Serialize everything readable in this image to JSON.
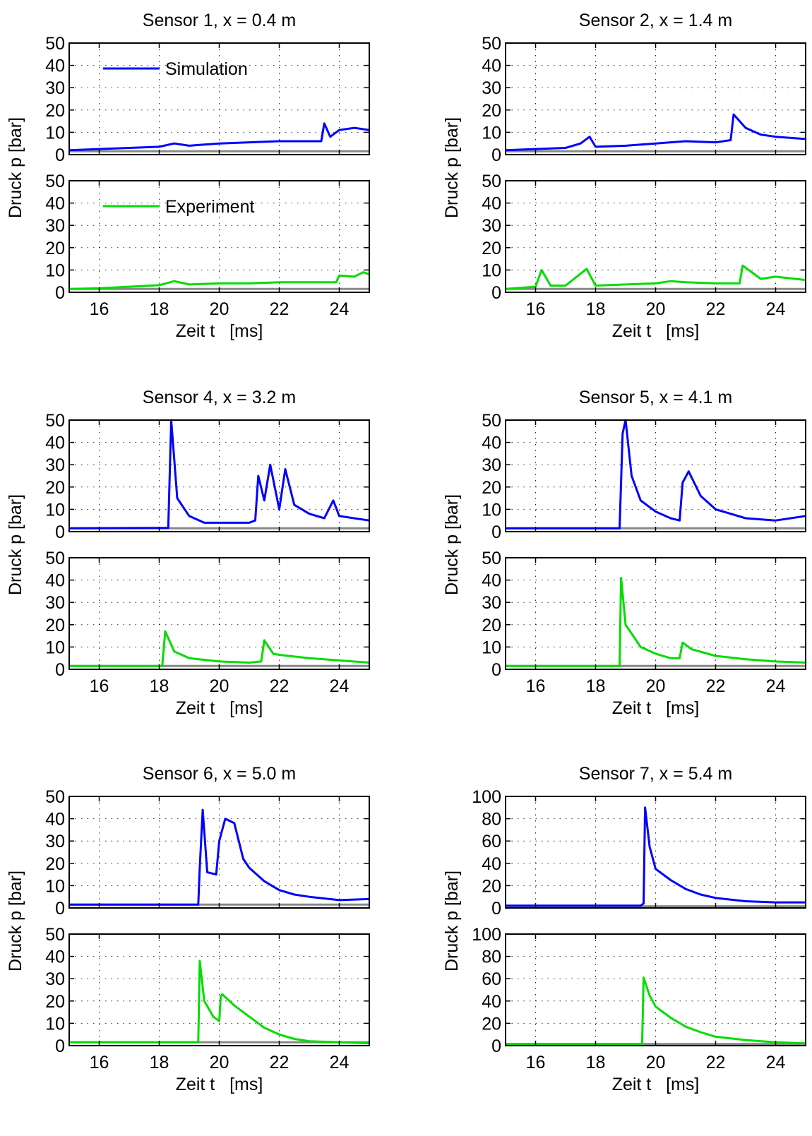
{
  "colors": {
    "simulation": "#0000ff",
    "experiment": "#00dd00",
    "baseline": "#888888"
  },
  "legend": {
    "simulation": "Simulation",
    "experiment": "Experiment"
  },
  "axes": {
    "x_label": "Zeit t   [ms]",
    "y_label": "Druck p    [bar]"
  },
  "chart_data": [
    {
      "type": "line",
      "title": "Sensor 1, x = 0.4 m",
      "xlim": [
        15,
        25
      ],
      "xticks": [
        16,
        18,
        20,
        22,
        24
      ],
      "ylim": [
        0,
        50
      ],
      "yticks": [
        0,
        10,
        20,
        30,
        40,
        50
      ],
      "grid": true,
      "legend_placement": "top-left",
      "series": [
        {
          "name": "Simulation",
          "points": [
            [
              15,
              2
            ],
            [
              16,
              2.5
            ],
            [
              17,
              3
            ],
            [
              18,
              3.5
            ],
            [
              18.5,
              5
            ],
            [
              19,
              4
            ],
            [
              19.5,
              4.5
            ],
            [
              20,
              5
            ],
            [
              21,
              5.5
            ],
            [
              22,
              6
            ],
            [
              23,
              6
            ],
            [
              23.4,
              6
            ],
            [
              23.5,
              14
            ],
            [
              23.7,
              8
            ],
            [
              24,
              11
            ],
            [
              24.5,
              12
            ],
            [
              25,
              11
            ]
          ]
        },
        {
          "name": "Experiment",
          "points": [
            [
              15,
              1.5
            ],
            [
              16,
              1.8
            ],
            [
              17,
              2.5
            ],
            [
              18,
              3.2
            ],
            [
              18.5,
              5
            ],
            [
              19,
              3.5
            ],
            [
              20,
              4
            ],
            [
              21,
              4
            ],
            [
              22,
              4.5
            ],
            [
              23,
              4.5
            ],
            [
              23.9,
              4.5
            ],
            [
              24,
              7.5
            ],
            [
              24.5,
              7
            ],
            [
              24.8,
              9
            ],
            [
              25,
              8
            ]
          ]
        }
      ]
    },
    {
      "type": "line",
      "title": "Sensor 2, x = 1.4 m",
      "xlim": [
        15,
        25
      ],
      "xticks": [
        16,
        18,
        20,
        22,
        24
      ],
      "ylim": [
        0,
        50
      ],
      "yticks": [
        0,
        10,
        20,
        30,
        40,
        50
      ],
      "grid": true,
      "series": [
        {
          "name": "Simulation",
          "points": [
            [
              15,
              2
            ],
            [
              16,
              2.5
            ],
            [
              17,
              3
            ],
            [
              17.5,
              5
            ],
            [
              17.8,
              8
            ],
            [
              18,
              3.5
            ],
            [
              19,
              4
            ],
            [
              20,
              5
            ],
            [
              21,
              6
            ],
            [
              22,
              5.5
            ],
            [
              22.5,
              6.5
            ],
            [
              22.6,
              18
            ],
            [
              23,
              12
            ],
            [
              23.5,
              9
            ],
            [
              24,
              8
            ],
            [
              25,
              7
            ]
          ]
        },
        {
          "name": "Experiment",
          "points": [
            [
              15,
              1.5
            ],
            [
              16,
              2.5
            ],
            [
              16.2,
              10
            ],
            [
              16.5,
              3
            ],
            [
              17,
              3
            ],
            [
              17.7,
              10.5
            ],
            [
              18,
              3
            ],
            [
              19,
              3.5
            ],
            [
              20,
              4
            ],
            [
              20.5,
              5
            ],
            [
              21,
              4.5
            ],
            [
              22,
              4
            ],
            [
              22.8,
              4
            ],
            [
              22.9,
              12
            ],
            [
              23.5,
              6
            ],
            [
              24,
              7
            ],
            [
              25,
              5.5
            ]
          ]
        }
      ]
    },
    {
      "type": "line",
      "title": "Sensor 4, x = 3.2 m",
      "xlim": [
        15,
        25
      ],
      "xticks": [
        16,
        18,
        20,
        22,
        24
      ],
      "ylim": [
        0,
        50
      ],
      "yticks": [
        0,
        10,
        20,
        30,
        40,
        50
      ],
      "grid": true,
      "series": [
        {
          "name": "Simulation",
          "points": [
            [
              15,
              1.5
            ],
            [
              18.3,
              1.7
            ],
            [
              18.4,
              50
            ],
            [
              18.6,
              15
            ],
            [
              19,
              7
            ],
            [
              19.5,
              4
            ],
            [
              20,
              4
            ],
            [
              21,
              4
            ],
            [
              21.2,
              5
            ],
            [
              21.3,
              25
            ],
            [
              21.5,
              14
            ],
            [
              21.7,
              30
            ],
            [
              22,
              10
            ],
            [
              22.2,
              28
            ],
            [
              22.5,
              12
            ],
            [
              23,
              8
            ],
            [
              23.5,
              6
            ],
            [
              23.8,
              14
            ],
            [
              24,
              7
            ],
            [
              25,
              5
            ]
          ]
        },
        {
          "name": "Experiment",
          "points": [
            [
              15,
              1.5
            ],
            [
              18.1,
              1.5
            ],
            [
              18.2,
              17
            ],
            [
              18.5,
              8
            ],
            [
              19,
              5
            ],
            [
              20,
              3.5
            ],
            [
              21,
              3
            ],
            [
              21.4,
              3.5
            ],
            [
              21.5,
              13
            ],
            [
              21.8,
              7
            ],
            [
              22,
              6.5
            ],
            [
              23,
              5
            ],
            [
              24,
              4
            ],
            [
              25,
              3
            ]
          ]
        }
      ]
    },
    {
      "type": "line",
      "title": "Sensor 5, x = 4.1 m",
      "xlim": [
        15,
        25
      ],
      "xticks": [
        16,
        18,
        20,
        22,
        24
      ],
      "ylim": [
        0,
        50
      ],
      "yticks": [
        0,
        10,
        20,
        30,
        40,
        50
      ],
      "grid": true,
      "series": [
        {
          "name": "Simulation",
          "points": [
            [
              15,
              1.5
            ],
            [
              18.8,
              1.5
            ],
            [
              18.9,
              44
            ],
            [
              19,
              50
            ],
            [
              19.2,
              25
            ],
            [
              19.5,
              14
            ],
            [
              20,
              9
            ],
            [
              20.5,
              6
            ],
            [
              20.8,
              5
            ],
            [
              20.9,
              22
            ],
            [
              21.1,
              27
            ],
            [
              21.5,
              16
            ],
            [
              22,
              10
            ],
            [
              22.5,
              8
            ],
            [
              23,
              6
            ],
            [
              24,
              5
            ],
            [
              25,
              7
            ]
          ]
        },
        {
          "name": "Experiment",
          "points": [
            [
              15,
              1.5
            ],
            [
              18.8,
              1.5
            ],
            [
              18.85,
              41
            ],
            [
              19,
              20
            ],
            [
              19.5,
              10
            ],
            [
              20,
              7
            ],
            [
              20.5,
              5
            ],
            [
              20.8,
              5
            ],
            [
              20.9,
              12
            ],
            [
              21.2,
              9
            ],
            [
              22,
              6
            ],
            [
              23,
              4.5
            ],
            [
              24,
              3.5
            ],
            [
              25,
              3
            ]
          ]
        }
      ]
    },
    {
      "type": "line",
      "title": "Sensor 6, x = 5.0 m",
      "xlim": [
        15,
        25
      ],
      "xticks": [
        16,
        18,
        20,
        22,
        24
      ],
      "ylim": [
        0,
        50
      ],
      "yticks": [
        0,
        10,
        20,
        30,
        40,
        50
      ],
      "grid": true,
      "series": [
        {
          "name": "Simulation",
          "points": [
            [
              15,
              1.5
            ],
            [
              19.3,
              1.5
            ],
            [
              19.35,
              18
            ],
            [
              19.45,
              44
            ],
            [
              19.6,
              16
            ],
            [
              19.9,
              15
            ],
            [
              20,
              30
            ],
            [
              20.2,
              40
            ],
            [
              20.5,
              38
            ],
            [
              20.8,
              22
            ],
            [
              21,
              18
            ],
            [
              21.5,
              12
            ],
            [
              22,
              8
            ],
            [
              22.5,
              6
            ],
            [
              23,
              5
            ],
            [
              24,
              3.5
            ],
            [
              25,
              4
            ]
          ]
        },
        {
          "name": "Experiment",
          "points": [
            [
              15,
              1.5
            ],
            [
              19.3,
              1.5
            ],
            [
              19.35,
              38
            ],
            [
              19.5,
              20
            ],
            [
              19.8,
              13
            ],
            [
              20,
              11
            ],
            [
              20.05,
              22
            ],
            [
              20.1,
              23
            ],
            [
              20.5,
              18
            ],
            [
              21,
              13
            ],
            [
              21.5,
              8
            ],
            [
              22,
              5
            ],
            [
              22.5,
              3
            ],
            [
              23,
              2
            ],
            [
              24,
              1.5
            ],
            [
              25,
              1
            ]
          ]
        }
      ]
    },
    {
      "type": "line",
      "title": "Sensor 7, x = 5.4 m",
      "xlim": [
        15,
        25
      ],
      "xticks": [
        16,
        18,
        20,
        22,
        24
      ],
      "ylim": [
        0,
        100
      ],
      "yticks": [
        0,
        20,
        40,
        60,
        80,
        100
      ],
      "grid": true,
      "series": [
        {
          "name": "Simulation",
          "points": [
            [
              15,
              2
            ],
            [
              19.5,
              2
            ],
            [
              19.6,
              4
            ],
            [
              19.65,
              90
            ],
            [
              19.8,
              55
            ],
            [
              20,
              35
            ],
            [
              20.5,
              25
            ],
            [
              21,
              17
            ],
            [
              21.5,
              12
            ],
            [
              22,
              9
            ],
            [
              23,
              6
            ],
            [
              24,
              5
            ],
            [
              25,
              5
            ]
          ]
        },
        {
          "name": "Experiment",
          "points": [
            [
              15,
              1.5
            ],
            [
              19.55,
              1.5
            ],
            [
              19.6,
              61
            ],
            [
              19.8,
              45
            ],
            [
              20,
              35
            ],
            [
              20.5,
              25
            ],
            [
              21,
              17
            ],
            [
              21.5,
              12
            ],
            [
              22,
              8
            ],
            [
              23,
              5
            ],
            [
              24,
              3
            ],
            [
              25,
              2
            ]
          ]
        }
      ]
    }
  ]
}
